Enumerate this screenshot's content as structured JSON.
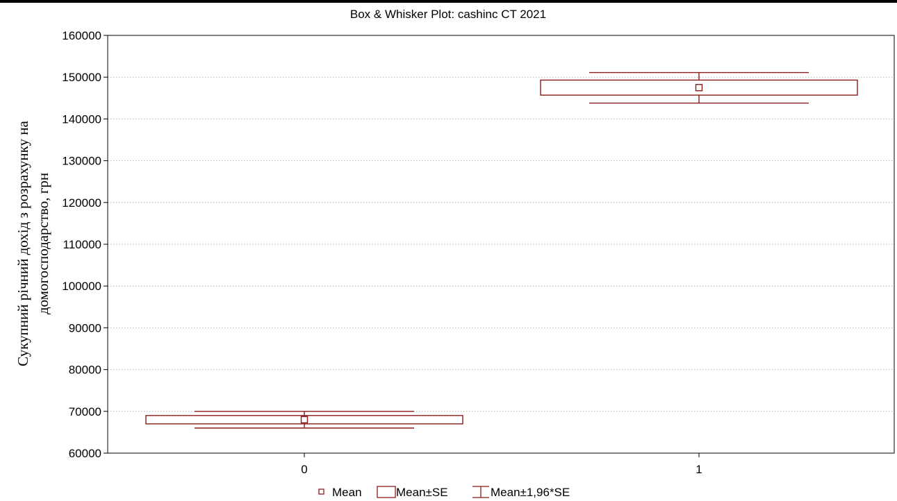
{
  "chart_data": {
    "type": "box",
    "title": "Box & Whisker Plot: cashinc CT 2021",
    "ylabel_lines": [
      "Сукупний річний дохід з розрахунку на",
      "домогосподарство, грн"
    ],
    "xlabel": "",
    "categories": [
      "0",
      "1"
    ],
    "yticks": [
      60000,
      70000,
      80000,
      90000,
      100000,
      110000,
      120000,
      130000,
      140000,
      150000,
      160000
    ],
    "ylim": [
      60000,
      160000
    ],
    "grid": "horizontal dotted",
    "series": [
      {
        "category": "0",
        "mean": 68000,
        "box_low": 67000,
        "box_high": 69000,
        "whisker_low": 66000,
        "whisker_high": 70000
      },
      {
        "category": "1",
        "mean": 147500,
        "box_low": 145700,
        "box_high": 149300,
        "whisker_low": 143800,
        "whisker_high": 151100
      }
    ],
    "legend": {
      "position": "bottom-center",
      "items": [
        "Mean",
        "Mean±SE",
        "Mean±1,96*SE"
      ]
    },
    "colors": {
      "series": "#8b1a1a",
      "grid": "#b0b0b0",
      "axis": "#000000"
    }
  }
}
